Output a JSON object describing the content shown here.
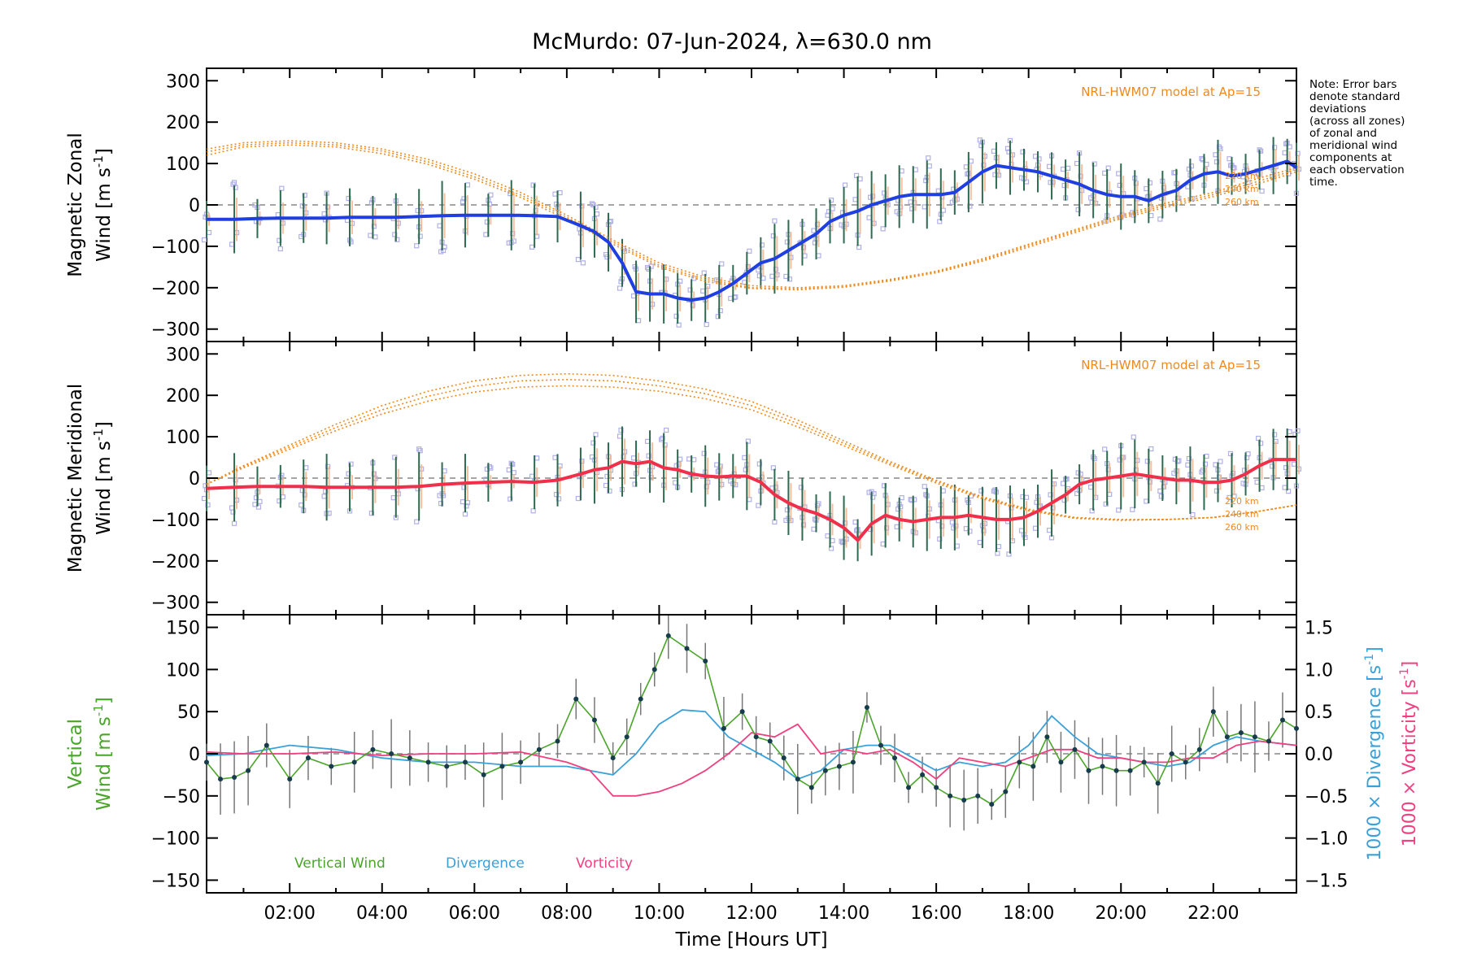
{
  "title": "McMurdo: 07-Jun-2024, λ=630.0 nm",
  "note": [
    "Note: Error bars",
    "denote standard",
    "deviations",
    "(across all zones)",
    "of zonal and",
    "meridional wind",
    "components at",
    "each observation",
    "time."
  ],
  "xlabel": "Time [Hours UT]",
  "x_ticks": [
    "02:00",
    "04:00",
    "06:00",
    "08:00",
    "10:00",
    "12:00",
    "14:00",
    "16:00",
    "18:00",
    "20:00",
    "22:00"
  ],
  "colors": {
    "zonal": "#1f3fe0",
    "meridional": "#f0304a",
    "model": "#f08a1c",
    "vertical": "#4aa52a",
    "divergence": "#3aa0d8",
    "vorticity": "#f0407f",
    "scatter": "#b0b0e8"
  },
  "panels": {
    "zonal": {
      "ylabel_line1": "Magnetic Zonal",
      "ylabel_line2": "Wind [m s",
      "ylabel_sup": "-1",
      "ylabel_close": "]",
      "model_label": "NRL-HWM07 model at Ap=15",
      "model_alt_labels": [
        "220 km",
        "240 km",
        "260 km"
      ],
      "y_ticks": [
        "300",
        "200",
        "100",
        "0",
        "−100",
        "−200",
        "−300"
      ]
    },
    "meridional": {
      "ylabel_line1": "Magnetic Meridional",
      "ylabel_line2": "Wind [m s",
      "ylabel_sup": "-1",
      "ylabel_close": "]",
      "model_label": "NRL-HWM07 model at Ap=15",
      "model_alt_labels": [
        "220 km",
        "240 km",
        "260 km"
      ],
      "y_ticks": [
        "300",
        "200",
        "100",
        "0",
        "−100",
        "−200",
        "−300"
      ]
    },
    "vertical": {
      "ylabel_line1": "Vertical",
      "ylabel_line2": "Wind [m s",
      "ylabel_sup": "-1",
      "ylabel_close": "]",
      "y_ticks": [
        "150",
        "100",
        "50",
        "0",
        "−50",
        "−100",
        "−150"
      ],
      "right_ticks": [
        "1.5",
        "1.0",
        "0.5",
        "0.0",
        "−0.5",
        "−1.0",
        "−1.5"
      ],
      "right_label_div": "1000 × Divergence [s",
      "right_label_vort": "1000 × Vorticity [s",
      "right_label_sup": "-1",
      "right_label_close": "]",
      "legend": [
        "Vertical Wind",
        "Divergence",
        "Vorticity"
      ]
    }
  },
  "chart_data": [
    {
      "type": "line",
      "title": "McMurdo: 07-Jun-2024, λ=630.0 nm",
      "xlabel": "",
      "ylabel": "Magnetic Zonal Wind [m s-1]",
      "xlim": [
        0.2,
        23.8
      ],
      "ylim": [
        -330,
        330
      ],
      "series": [
        {
          "name": "zonal",
          "x": [
            0.2,
            0.8,
            1.3,
            1.8,
            2.3,
            2.8,
            3.3,
            3.8,
            4.3,
            4.8,
            5.3,
            5.8,
            6.3,
            6.8,
            7.3,
            7.8,
            8.3,
            8.6,
            8.9,
            9.2,
            9.5,
            9.8,
            10.1,
            10.4,
            10.7,
            11.0,
            11.3,
            11.6,
            11.9,
            12.2,
            12.5,
            12.8,
            13.1,
            13.4,
            13.7,
            14.0,
            14.3,
            14.6,
            14.9,
            15.2,
            15.5,
            15.8,
            16.1,
            16.4,
            16.7,
            17.0,
            17.3,
            17.6,
            17.9,
            18.2,
            18.5,
            18.8,
            19.1,
            19.4,
            19.7,
            20.0,
            20.3,
            20.6,
            20.9,
            21.2,
            21.5,
            21.8,
            22.1,
            22.4,
            22.7,
            23.0,
            23.3,
            23.6,
            23.8
          ],
          "y": [
            -35,
            -35,
            -33,
            -32,
            -32,
            -32,
            -30,
            -30,
            -30,
            -28,
            -26,
            -25,
            -25,
            -25,
            -26,
            -28,
            -50,
            -65,
            -90,
            -140,
            -210,
            -215,
            -215,
            -225,
            -230,
            -225,
            -210,
            -190,
            -165,
            -140,
            -130,
            -110,
            -90,
            -70,
            -40,
            -25,
            -15,
            0,
            10,
            20,
            25,
            25,
            25,
            30,
            55,
            80,
            95,
            90,
            85,
            80,
            70,
            60,
            50,
            35,
            25,
            20,
            20,
            10,
            25,
            35,
            60,
            75,
            80,
            70,
            75,
            85,
            95,
            105,
            90
          ]
        },
        {
          "name": "model 220 km",
          "x": [
            0.2,
            1,
            2,
            3,
            4,
            5,
            6,
            7,
            8,
            9,
            10,
            11,
            12,
            13,
            14,
            15,
            16,
            17,
            18,
            19,
            20,
            21,
            22,
            23,
            23.8
          ],
          "y": [
            135,
            150,
            155,
            150,
            135,
            110,
            75,
            30,
            -25,
            -85,
            -140,
            -175,
            -195,
            -200,
            -195,
            -180,
            -160,
            -130,
            -95,
            -60,
            -25,
            5,
            30,
            65,
            90
          ]
        },
        {
          "name": "model 240 km",
          "x": [
            0.2,
            1,
            2,
            3,
            4,
            5,
            6,
            7,
            8,
            9,
            10,
            11,
            12,
            13,
            14,
            15,
            16,
            17,
            18,
            19,
            20,
            21,
            22,
            23,
            23.8
          ],
          "y": [
            128,
            145,
            150,
            145,
            130,
            104,
            68,
            24,
            -30,
            -90,
            -146,
            -180,
            -200,
            -203,
            -197,
            -182,
            -162,
            -133,
            -98,
            -63,
            -29,
            0,
            25,
            58,
            85
          ]
        },
        {
          "name": "model 260 km",
          "x": [
            0.2,
            1,
            2,
            3,
            4,
            5,
            6,
            7,
            8,
            9,
            10,
            11,
            12,
            13,
            14,
            15,
            16,
            17,
            18,
            19,
            20,
            21,
            22,
            23,
            23.8
          ],
          "y": [
            120,
            140,
            145,
            140,
            124,
            98,
            62,
            18,
            -35,
            -95,
            -150,
            -185,
            -202,
            -205,
            -199,
            -184,
            -164,
            -136,
            -102,
            -67,
            -33,
            -5,
            20,
            52,
            80
          ]
        }
      ]
    },
    {
      "type": "line",
      "title": "",
      "xlabel": "",
      "ylabel": "Magnetic Meridional Wind [m s-1]",
      "xlim": [
        0.2,
        23.8
      ],
      "ylim": [
        -330,
        330
      ],
      "series": [
        {
          "name": "meridional",
          "x": [
            0.2,
            0.8,
            1.3,
            1.8,
            2.3,
            2.8,
            3.3,
            3.8,
            4.3,
            4.8,
            5.3,
            5.8,
            6.3,
            6.8,
            7.3,
            7.8,
            8.3,
            8.6,
            8.9,
            9.2,
            9.5,
            9.8,
            10.1,
            10.4,
            10.7,
            11.0,
            11.3,
            11.6,
            11.9,
            12.2,
            12.5,
            12.8,
            13.1,
            13.4,
            13.7,
            14.0,
            14.3,
            14.6,
            14.9,
            15.2,
            15.5,
            15.8,
            16.1,
            16.4,
            16.7,
            17.0,
            17.3,
            17.6,
            17.9,
            18.2,
            18.5,
            18.8,
            19.1,
            19.4,
            19.7,
            20.0,
            20.3,
            20.6,
            20.9,
            21.2,
            21.5,
            21.8,
            22.1,
            22.4,
            22.7,
            23.0,
            23.3,
            23.6,
            23.8
          ],
          "y": [
            -25,
            -22,
            -20,
            -20,
            -20,
            -22,
            -22,
            -22,
            -22,
            -20,
            -15,
            -12,
            -10,
            -8,
            -10,
            -5,
            10,
            20,
            25,
            40,
            35,
            40,
            25,
            20,
            10,
            5,
            3,
            5,
            5,
            -10,
            -40,
            -60,
            -75,
            -85,
            -100,
            -120,
            -150,
            -110,
            -90,
            -100,
            -105,
            -100,
            -95,
            -95,
            -90,
            -95,
            -100,
            -100,
            -95,
            -80,
            -60,
            -40,
            -15,
            -5,
            0,
            5,
            10,
            5,
            0,
            -5,
            -5,
            -10,
            -10,
            -5,
            10,
            30,
            45,
            45,
            45
          ]
        },
        {
          "name": "model 220 km",
          "x": [
            0.2,
            1,
            2,
            3,
            4,
            5,
            6,
            7,
            8,
            9,
            10,
            11,
            12,
            13,
            14,
            15,
            16,
            17,
            18,
            19,
            20,
            21,
            22,
            23,
            23.8
          ],
          "y": [
            -15,
            30,
            80,
            130,
            175,
            210,
            235,
            248,
            252,
            248,
            235,
            215,
            185,
            140,
            90,
            40,
            -5,
            -45,
            -75,
            -95,
            -100,
            -100,
            -95,
            -80,
            -65
          ]
        },
        {
          "name": "model 240 km",
          "x": [
            0.2,
            1,
            2,
            3,
            4,
            5,
            6,
            7,
            8,
            9,
            10,
            11,
            12,
            13,
            14,
            15,
            16,
            17,
            18,
            19,
            20,
            21,
            22,
            23,
            23.8
          ],
          "y": [
            -15,
            28,
            75,
            122,
            165,
            198,
            222,
            235,
            238,
            235,
            223,
            204,
            175,
            132,
            84,
            36,
            -8,
            -47,
            -77,
            -96,
            -101,
            -100,
            -95,
            -80,
            -65
          ]
        },
        {
          "name": "model 260 km",
          "x": [
            0.2,
            1,
            2,
            3,
            4,
            5,
            6,
            7,
            8,
            9,
            10,
            11,
            12,
            13,
            14,
            15,
            16,
            17,
            18,
            19,
            20,
            21,
            22,
            23,
            23.8
          ],
          "y": [
            -15,
            25,
            70,
            115,
            155,
            186,
            208,
            220,
            223,
            220,
            210,
            192,
            165,
            124,
            78,
            32,
            -12,
            -50,
            -79,
            -97,
            -102,
            -100,
            -95,
            -80,
            -65
          ]
        }
      ]
    },
    {
      "type": "line",
      "title": "",
      "xlabel": "Time [Hours UT]",
      "ylabel": "Vertical Wind [m s-1]",
      "xlim": [
        0.2,
        23.8
      ],
      "ylim": [
        -165,
        165
      ],
      "y2lim": [
        -1.65,
        1.65
      ],
      "series": [
        {
          "name": "Vertical Wind",
          "x": [
            0.2,
            0.5,
            0.8,
            1.1,
            1.5,
            2.0,
            2.4,
            2.9,
            3.4,
            3.8,
            4.2,
            4.6,
            5.0,
            5.4,
            5.8,
            6.2,
            6.6,
            7.0,
            7.4,
            7.8,
            8.2,
            8.6,
            9.0,
            9.3,
            9.6,
            9.9,
            10.2,
            10.6,
            11.0,
            11.4,
            11.8,
            12.1,
            12.4,
            12.7,
            13.0,
            13.3,
            13.6,
            13.9,
            14.2,
            14.5,
            14.8,
            15.1,
            15.4,
            15.7,
            16.0,
            16.3,
            16.6,
            16.9,
            17.2,
            17.5,
            17.8,
            18.1,
            18.4,
            18.7,
            19.0,
            19.3,
            19.6,
            19.9,
            20.2,
            20.5,
            20.8,
            21.1,
            21.4,
            21.7,
            22.0,
            22.3,
            22.6,
            22.9,
            23.2,
            23.5,
            23.8
          ],
          "y": [
            -10,
            -30,
            -28,
            -20,
            10,
            -30,
            -5,
            -15,
            -10,
            5,
            0,
            -5,
            -10,
            -15,
            -10,
            -25,
            -15,
            -10,
            5,
            15,
            65,
            40,
            -5,
            20,
            65,
            100,
            140,
            125,
            110,
            30,
            50,
            20,
            15,
            -5,
            -30,
            -40,
            -20,
            -15,
            -10,
            55,
            10,
            -5,
            -40,
            -25,
            -40,
            -50,
            -55,
            -50,
            -60,
            -45,
            -10,
            -15,
            20,
            -10,
            5,
            -20,
            -15,
            -20,
            -20,
            -10,
            -35,
            0,
            -10,
            5,
            50,
            20,
            25,
            20,
            15,
            40,
            30
          ]
        },
        {
          "name": "Divergence",
          "x": [
            0.2,
            1,
            2,
            3,
            4,
            5,
            6,
            7,
            8,
            9,
            9.5,
            10,
            10.5,
            11,
            11.5,
            12,
            12.5,
            13,
            13.5,
            14,
            14.5,
            15,
            15.5,
            16,
            16.5,
            17,
            17.5,
            18,
            18.5,
            19,
            19.5,
            20,
            20.5,
            21,
            21.5,
            22,
            22.5,
            23,
            23.8
          ],
          "y": [
            -0.02,
            0.0,
            0.1,
            0.05,
            -0.05,
            -0.1,
            -0.1,
            -0.15,
            -0.15,
            -0.25,
            0.0,
            0.35,
            0.52,
            0.5,
            0.2,
            0.05,
            -0.1,
            -0.3,
            -0.2,
            0.05,
            0.1,
            0.1,
            -0.05,
            -0.2,
            -0.1,
            -0.15,
            -0.1,
            0.1,
            0.45,
            0.2,
            0.0,
            -0.05,
            -0.1,
            -0.15,
            -0.1,
            0.1,
            0.2,
            0.15,
            0.1
          ]
        },
        {
          "name": "Vorticity",
          "x": [
            0.2,
            1,
            2,
            3,
            4,
            5,
            6,
            7,
            8,
            8.5,
            9,
            9.5,
            10,
            10.5,
            11,
            11.5,
            12,
            12.5,
            13,
            13.5,
            14,
            14.5,
            15,
            15.5,
            16,
            16.5,
            17,
            17.5,
            18,
            18.5,
            19,
            19.5,
            20,
            20.5,
            21,
            21.5,
            22,
            22.5,
            23,
            23.8
          ],
          "y": [
            0.02,
            0.0,
            0.0,
            0.02,
            -0.02,
            0.0,
            0.0,
            0.02,
            -0.1,
            -0.2,
            -0.5,
            -0.5,
            -0.45,
            -0.35,
            -0.2,
            0.0,
            0.25,
            0.2,
            0.35,
            0.0,
            0.05,
            0.0,
            0.05,
            -0.1,
            -0.3,
            -0.05,
            -0.1,
            -0.15,
            -0.05,
            0.05,
            0.05,
            -0.05,
            -0.05,
            -0.1,
            -0.1,
            -0.05,
            -0.05,
            0.1,
            0.15,
            0.1
          ]
        }
      ]
    }
  ]
}
